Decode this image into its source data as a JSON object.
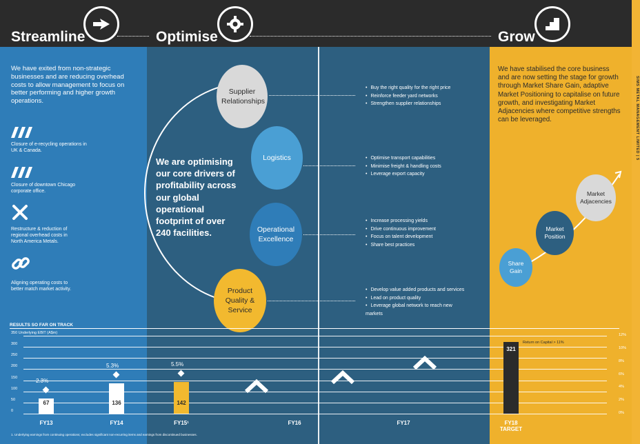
{
  "header": {
    "stages": [
      {
        "title": "Streamline",
        "icon": "arrow-hand-icon"
      },
      {
        "title": "Optimise",
        "icon": "gear-icon"
      },
      {
        "title": "Grow",
        "icon": "steps-icon"
      }
    ]
  },
  "streamline": {
    "intro": "We have exited from non-strategic businesses and are reducing overhead costs to allow management to focus on better performing and higher growth operations.",
    "items": [
      {
        "icon": "slashes-icon",
        "text": "Closure of e-recycling operations in UK & Canada."
      },
      {
        "icon": "slashes-icon",
        "text": "Closure of downtown Chicago corporate office."
      },
      {
        "icon": "tools-icon",
        "text": "Restructure & reduction of regional overhead costs in North America Metals."
      },
      {
        "icon": "chain-link-icon",
        "text": "Aligning operating costs to better match market activity."
      }
    ]
  },
  "optimise": {
    "statement": "We are optimising our core drivers of profitability across our global operational footprint of over 240 facilities.",
    "drivers": [
      {
        "label": "Supplier Relationships",
        "color": "#d9d9d9",
        "bullets": [
          "Buy the right quality for the right price",
          "Reinforce feeder yard networks",
          "Strengthen supplier relationships"
        ]
      },
      {
        "label": "Logistics",
        "color": "#4a9fd4",
        "bullets": [
          "Optimise transport capabilities",
          "Minimise freight & handling costs",
          "Leverage export capacity"
        ]
      },
      {
        "label": "Operational Excellence",
        "color": "#2f7db8",
        "bullets": [
          "Increase processing yields",
          "Drive continuous improvement",
          "Focus on talent development",
          "Share best practices"
        ]
      },
      {
        "label": "Product Quality & Service",
        "color": "#f2b92f",
        "bullets": [
          "Develop value added products and services",
          "Lead on product quality",
          "Leverage global network to reach new markets"
        ]
      }
    ]
  },
  "grow": {
    "intro": "We have stabilised the core business and are now setting the stage for growth through Market Share Gain, adaptive Market Positioning to capitalise on future growth, and investigating Market Adjacencies where competitive strengths can be leveraged.",
    "steps": [
      {
        "label": "Share Gain",
        "color": "#4a9fd4"
      },
      {
        "label": "Market Position",
        "color": "#2d5f80"
      },
      {
        "label": "Market Adjacencies",
        "color": "#d9d9d9"
      }
    ]
  },
  "side_text": "SIMS METAL MANAGEMENT LIMITED | 5",
  "chart_data": {
    "type": "bar",
    "title": "RESULTS SO FAR ON TRACK",
    "ylabel": "Underlying EBIT (A$m)",
    "ylim": [
      0,
      350
    ],
    "yticks_left": [
      "350 Underlying EBIT (A$m)",
      "300",
      "250",
      "200",
      "150",
      "100",
      "50",
      "0"
    ],
    "yticks_right": [
      "12%",
      "10%",
      "8%",
      "6%",
      "4%",
      "2%",
      "0%"
    ],
    "categories": [
      "FY13",
      "FY14",
      "FY15¹",
      "FY16",
      "FY17",
      "FY18 TARGET"
    ],
    "values": [
      67,
      136,
      142,
      null,
      null,
      321
    ],
    "value_labels": [
      "67",
      "136",
      "142",
      "",
      "",
      "321"
    ],
    "roc_labels": [
      "2.3%",
      "5.3%",
      "5.5%",
      "",
      "",
      "Return on Capital > 11%"
    ],
    "bar_colors": [
      "#ffffff",
      "#ffffff",
      "#f2b92f",
      "",
      "",
      "#2b2b2b"
    ],
    "footnote": "1.   Underlying earnings from continuing operations; excludes significant non-recurring items and earnings from discontinued businesses."
  }
}
